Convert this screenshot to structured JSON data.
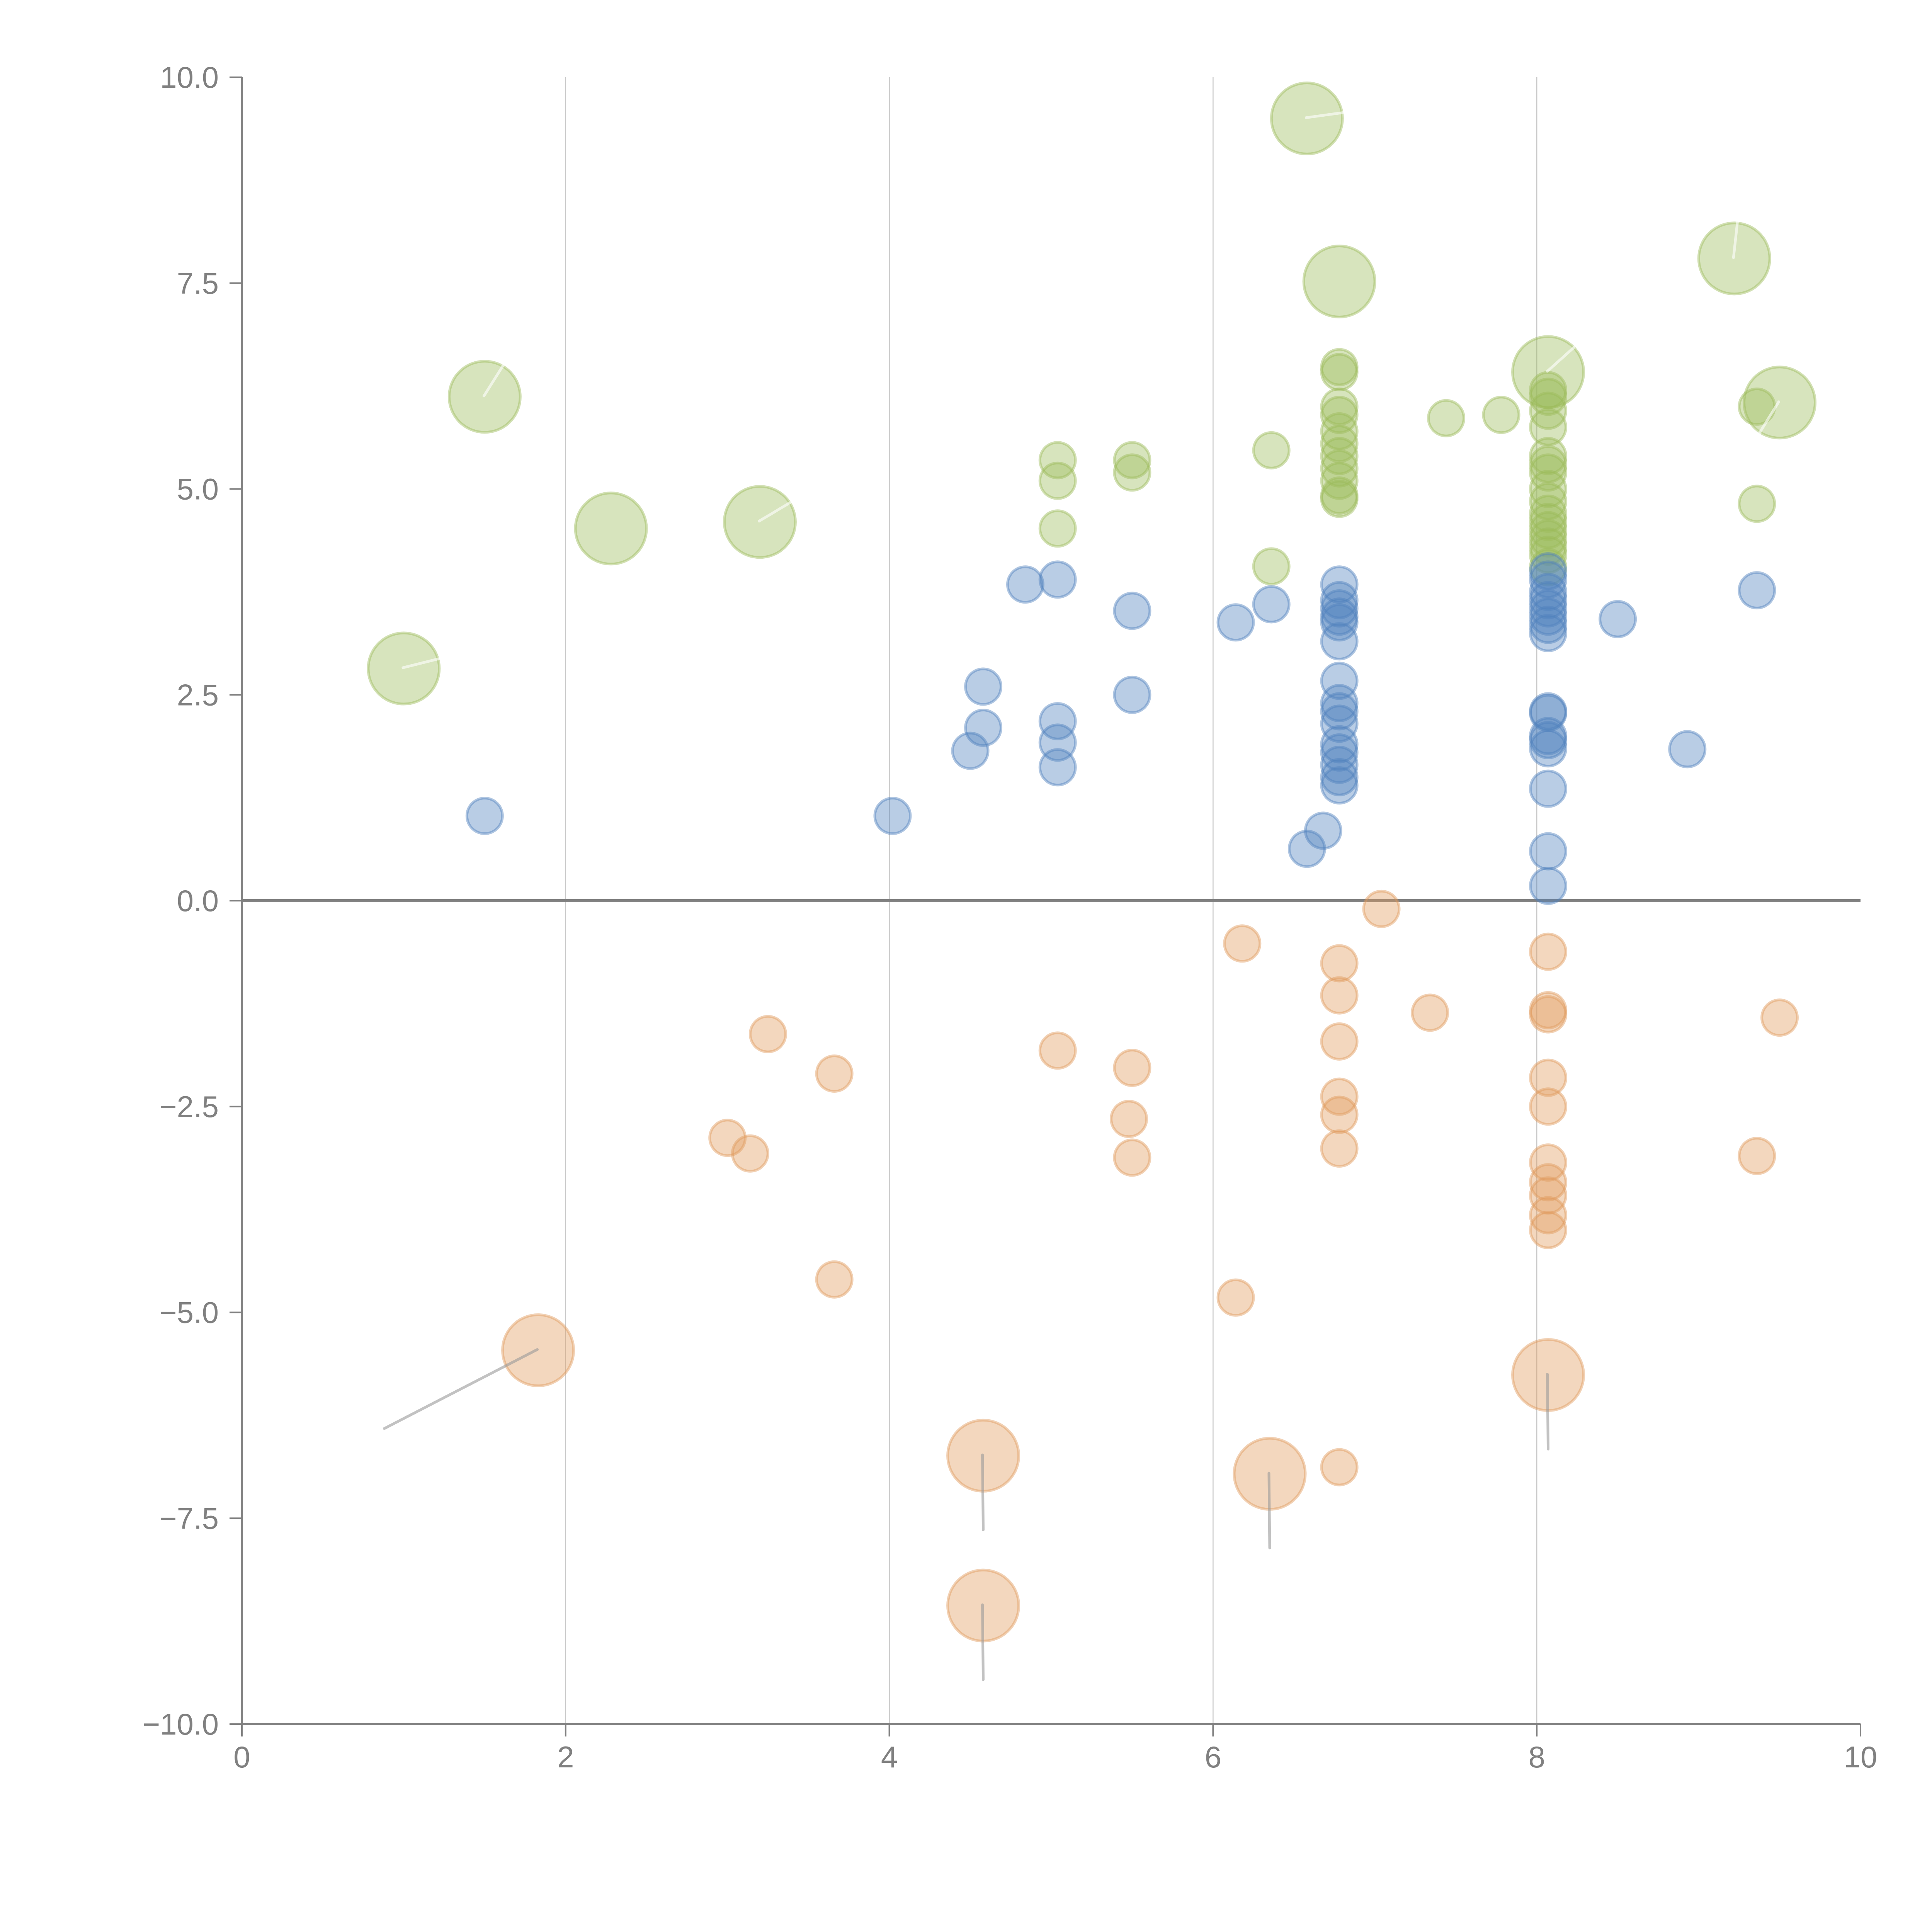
{
  "chart_data": {
    "type": "scatter",
    "title": "",
    "xlabel": "",
    "ylabel": "",
    "xlim": [
      0,
      10
    ],
    "ylim": [
      -10,
      10
    ],
    "grid": "vertical",
    "legend": "none",
    "x_ticks": [
      "0",
      "2",
      "4",
      "6",
      "8",
      "10"
    ],
    "x_tick_values": [
      0,
      2,
      4,
      6,
      8,
      10
    ],
    "y_ticks": [
      "10.0",
      "7.5",
      "5.0",
      "2.5",
      "0.0",
      "−2.5",
      "−5.0",
      "−7.5",
      "−10.0"
    ],
    "y_tick_values": [
      10,
      7.5,
      5,
      2.5,
      0,
      -2.5,
      -5,
      -7.5,
      -10
    ],
    "reference_line_y": 0,
    "colors": {
      "green": "#9bbb59",
      "blue": "#4f81bd",
      "orange": "#e09a5c",
      "green_vector": "#ffffff",
      "orange_vector": "#9a9a9a",
      "axis": "#808080",
      "grid": "#c8c8c8"
    },
    "series": [
      {
        "name": "green",
        "color": "green",
        "points": [
          {
            "x": 5.04,
            "y": 5.35
          },
          {
            "x": 5.04,
            "y": 5.1
          },
          {
            "x": 5.04,
            "y": 4.52
          },
          {
            "x": 5.5,
            "y": 5.35
          },
          {
            "x": 5.5,
            "y": 5.2
          },
          {
            "x": 6.36,
            "y": 5.47
          },
          {
            "x": 6.36,
            "y": 4.06
          },
          {
            "x": 6.78,
            "y": 6.48
          },
          {
            "x": 6.78,
            "y": 6.42
          },
          {
            "x": 6.78,
            "y": 6.0
          },
          {
            "x": 6.78,
            "y": 5.9
          },
          {
            "x": 6.78,
            "y": 5.7
          },
          {
            "x": 6.78,
            "y": 5.55
          },
          {
            "x": 6.78,
            "y": 5.4
          },
          {
            "x": 6.78,
            "y": 5.25
          },
          {
            "x": 6.78,
            "y": 5.1
          },
          {
            "x": 6.78,
            "y": 4.92
          },
          {
            "x": 6.78,
            "y": 4.88
          },
          {
            "x": 7.44,
            "y": 5.86
          },
          {
            "x": 7.78,
            "y": 5.9
          },
          {
            "x": 8.07,
            "y": 6.2
          },
          {
            "x": 8.07,
            "y": 6.12
          },
          {
            "x": 8.07,
            "y": 5.95
          },
          {
            "x": 8.07,
            "y": 5.75
          },
          {
            "x": 8.07,
            "y": 5.4
          },
          {
            "x": 8.07,
            "y": 5.3
          },
          {
            "x": 8.07,
            "y": 5.2
          },
          {
            "x": 8.07,
            "y": 5.0
          },
          {
            "x": 8.07,
            "y": 4.85
          },
          {
            "x": 8.07,
            "y": 4.7
          },
          {
            "x": 8.07,
            "y": 4.6
          },
          {
            "x": 8.07,
            "y": 4.5
          },
          {
            "x": 8.07,
            "y": 4.4
          },
          {
            "x": 8.07,
            "y": 4.3
          },
          {
            "x": 8.07,
            "y": 4.2
          },
          {
            "x": 8.07,
            "y": 4.05
          },
          {
            "x": 9.36,
            "y": 6.0
          },
          {
            "x": 9.36,
            "y": 4.82
          }
        ],
        "big_points": [
          {
            "x": 1.0,
            "y": 2.82,
            "vx": 0.22,
            "vy": 0.12
          },
          {
            "x": 1.5,
            "y": 6.12,
            "vx": 0.12,
            "vy": 0.4
          },
          {
            "x": 2.28,
            "y": 4.52,
            "vx": 0,
            "vy": 0
          },
          {
            "x": 3.2,
            "y": 4.6,
            "vx": 0.2,
            "vy": 0.25
          },
          {
            "x": 6.58,
            "y": 9.5,
            "vx": 0.22,
            "vy": 0.07
          },
          {
            "x": 6.78,
            "y": 7.52,
            "vx": 0,
            "vy": 0
          },
          {
            "x": 8.07,
            "y": 6.42,
            "vx": 0.16,
            "vy": 0.3
          },
          {
            "x": 9.22,
            "y": 7.8,
            "vx": 0.02,
            "vy": 0.45
          },
          {
            "x": 9.5,
            "y": 6.05,
            "vx": -0.14,
            "vy": -0.42
          }
        ]
      },
      {
        "name": "blue",
        "color": "blue",
        "points": [
          {
            "x": 1.5,
            "y": 1.03
          },
          {
            "x": 4.02,
            "y": 1.03
          },
          {
            "x": 4.5,
            "y": 1.82
          },
          {
            "x": 4.58,
            "y": 2.6
          },
          {
            "x": 4.58,
            "y": 2.1
          },
          {
            "x": 4.84,
            "y": 3.84
          },
          {
            "x": 5.04,
            "y": 3.9
          },
          {
            "x": 5.04,
            "y": 2.18
          },
          {
            "x": 5.04,
            "y": 1.92
          },
          {
            "x": 5.04,
            "y": 1.62
          },
          {
            "x": 5.5,
            "y": 3.52
          },
          {
            "x": 5.5,
            "y": 2.5
          },
          {
            "x": 6.14,
            "y": 3.38
          },
          {
            "x": 6.36,
            "y": 3.6
          },
          {
            "x": 6.58,
            "y": 0.63
          },
          {
            "x": 6.68,
            "y": 0.85
          },
          {
            "x": 6.78,
            "y": 3.84
          },
          {
            "x": 6.78,
            "y": 3.65
          },
          {
            "x": 6.78,
            "y": 3.55
          },
          {
            "x": 6.78,
            "y": 3.45
          },
          {
            "x": 6.78,
            "y": 3.38
          },
          {
            "x": 6.78,
            "y": 3.15
          },
          {
            "x": 6.78,
            "y": 2.67
          },
          {
            "x": 6.78,
            "y": 2.4
          },
          {
            "x": 6.78,
            "y": 2.3
          },
          {
            "x": 6.78,
            "y": 2.15
          },
          {
            "x": 6.78,
            "y": 1.9
          },
          {
            "x": 6.78,
            "y": 1.8
          },
          {
            "x": 6.78,
            "y": 1.65
          },
          {
            "x": 6.78,
            "y": 1.5
          },
          {
            "x": 6.78,
            "y": 1.4
          },
          {
            "x": 8.07,
            "y": 4.0
          },
          {
            "x": 8.07,
            "y": 3.9
          },
          {
            "x": 8.07,
            "y": 3.75
          },
          {
            "x": 8.07,
            "y": 3.65
          },
          {
            "x": 8.07,
            "y": 3.55
          },
          {
            "x": 8.07,
            "y": 3.45
          },
          {
            "x": 8.07,
            "y": 3.35
          },
          {
            "x": 8.07,
            "y": 3.25
          },
          {
            "x": 8.07,
            "y": 2.3
          },
          {
            "x": 8.07,
            "y": 2.28
          },
          {
            "x": 8.07,
            "y": 2.0
          },
          {
            "x": 8.07,
            "y": 1.95
          },
          {
            "x": 8.07,
            "y": 1.85
          },
          {
            "x": 8.07,
            "y": 1.36
          },
          {
            "x": 8.07,
            "y": 0.6
          },
          {
            "x": 8.07,
            "y": 0.18
          },
          {
            "x": 8.5,
            "y": 3.42
          },
          {
            "x": 8.93,
            "y": 1.84
          },
          {
            "x": 9.36,
            "y": 3.77
          }
        ],
        "big_points": []
      },
      {
        "name": "orange",
        "color": "orange",
        "points": [
          {
            "x": 3.0,
            "y": -2.88
          },
          {
            "x": 3.14,
            "y": -3.07
          },
          {
            "x": 3.25,
            "y": -1.62
          },
          {
            "x": 3.66,
            "y": -2.1
          },
          {
            "x": 3.66,
            "y": -4.6
          },
          {
            "x": 5.04,
            "y": -1.82
          },
          {
            "x": 5.5,
            "y": -2.03
          },
          {
            "x": 5.48,
            "y": -2.65
          },
          {
            "x": 5.5,
            "y": -3.12
          },
          {
            "x": 6.14,
            "y": -4.82
          },
          {
            "x": 6.18,
            "y": -0.52
          },
          {
            "x": 6.78,
            "y": -0.76
          },
          {
            "x": 6.78,
            "y": -1.15
          },
          {
            "x": 6.78,
            "y": -1.71
          },
          {
            "x": 6.78,
            "y": -2.38
          },
          {
            "x": 6.78,
            "y": -2.6
          },
          {
            "x": 6.78,
            "y": -3.01
          },
          {
            "x": 6.78,
            "y": -6.88
          },
          {
            "x": 7.04,
            "y": -0.1
          },
          {
            "x": 7.34,
            "y": -1.36
          },
          {
            "x": 8.07,
            "y": -0.62
          },
          {
            "x": 8.07,
            "y": -1.33
          },
          {
            "x": 8.07,
            "y": -1.38
          },
          {
            "x": 8.07,
            "y": -2.15
          },
          {
            "x": 8.07,
            "y": -2.5
          },
          {
            "x": 8.07,
            "y": -3.18
          },
          {
            "x": 8.07,
            "y": -3.42
          },
          {
            "x": 8.07,
            "y": -3.58
          },
          {
            "x": 8.07,
            "y": -3.82
          },
          {
            "x": 8.07,
            "y": -4.0
          },
          {
            "x": 9.36,
            "y": -3.1
          },
          {
            "x": 9.5,
            "y": -1.42
          }
        ],
        "big_points": [
          {
            "x": 1.83,
            "y": -5.46,
            "vx": -0.95,
            "vy": -0.95
          },
          {
            "x": 4.58,
            "y": -6.74,
            "vx": 0,
            "vy": -0.9
          },
          {
            "x": 4.58,
            "y": -8.56,
            "vx": 0,
            "vy": -0.9
          },
          {
            "x": 6.35,
            "y": -6.96,
            "vx": 0,
            "vy": -0.9
          },
          {
            "x": 8.07,
            "y": -5.76,
            "vx": 0,
            "vy": -0.9
          }
        ]
      }
    ]
  }
}
